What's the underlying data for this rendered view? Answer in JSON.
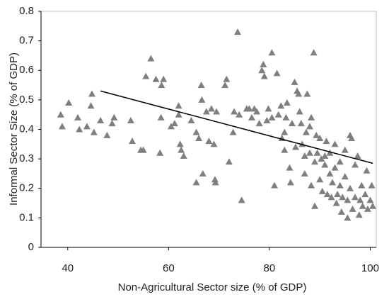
{
  "chart_data": {
    "type": "scatter",
    "x_label": "Non-Agricultural Sector size (% of GDP)",
    "y_label": "Informal Sector Size (% of GDP)",
    "xlim": [
      34.7,
      101.2
    ],
    "xticks": [
      40,
      60,
      80,
      100
    ],
    "ylim": [
      0,
      0.8
    ],
    "yticks": [
      0,
      0.1,
      0.2,
      0.3,
      0.4,
      0.5,
      0.6,
      0.7,
      0.8
    ],
    "x": [
      38.6,
      38.9,
      40.2,
      42,
      42.3,
      43.8,
      44.6,
      44.8,
      45.2,
      46.5,
      47.8,
      48.8,
      49.2,
      52.5,
      52.8,
      54.5,
      55,
      55.5,
      56.5,
      57.5,
      58.3,
      58.5,
      58.6,
      59,
      60.5,
      61.2,
      62,
      62,
      62.3,
      62.5,
      63,
      64.5,
      65.5,
      66,
      65.5,
      66.5,
      66.6,
      66.8,
      67.5,
      68,
      68.5,
      69.2,
      69.5,
      69.3,
      69,
      71.2,
      71.5,
      72,
      73.7,
      73,
      72.8,
      74,
      74.5,
      75.5,
      76,
      76.5,
      77,
      77.5,
      78,
      78.5,
      78.8,
      79,
      79.5,
      79.8,
      80.5,
      80.5,
      81,
      81.5,
      81.8,
      82.3,
      82.5,
      83,
      83,
      83.3,
      83.5,
      84,
      84.2,
      84.5,
      85,
      85.2,
      85.5,
      85.8,
      86,
      86.3,
      86.5,
      87,
      87,
      87.3,
      87.5,
      88,
      88,
      88.3,
      88.3,
      88.8,
      89,
      89,
      89.3,
      89.5,
      90,
      90,
      90.3,
      90.5,
      91,
      91,
      91.3,
      91.5,
      92,
      92,
      92.3,
      92.5,
      93,
      93,
      93.3,
      93.5,
      94,
      94,
      94.3,
      94.5,
      95,
      95,
      95.5,
      95.5,
      96,
      96,
      96.3,
      96.5,
      97,
      97,
      97.5,
      97.8,
      98,
      98.3,
      98.5,
      99,
      99.3,
      99.5,
      100,
      100.3,
      100.5
    ],
    "series": [
      {
        "color": "#7f7f7f",
        "values": [
          0.45,
          0.41,
          0.49,
          0.44,
          0.4,
          0.41,
          0.48,
          0.52,
          0.39,
          0.43,
          0.38,
          0.42,
          0.44,
          0.43,
          0.36,
          0.33,
          0.33,
          0.58,
          0.64,
          0.57,
          0.32,
          0.44,
          0.55,
          0.57,
          0.41,
          0.42,
          0.48,
          0.45,
          0.35,
          0.33,
          0.31,
          0.43,
          0.39,
          0.37,
          0.22,
          0.55,
          0.5,
          0.25,
          0.46,
          0.36,
          0.47,
          0.23,
          0.46,
          0.22,
          0.35,
          0.55,
          0.57,
          0.29,
          0.73,
          0.46,
          0.39,
          0.45,
          0.16,
          0.47,
          0.47,
          0.44,
          0.47,
          0.46,
          0.42,
          0.6,
          0.62,
          0.58,
          0.43,
          0.47,
          0.66,
          0.44,
          0.21,
          0.59,
          0.45,
          0.48,
          0.37,
          0.33,
          0.39,
          0.44,
          0.49,
          0.27,
          0.22,
          0.42,
          0.56,
          0.34,
          0.53,
          0.52,
          0.46,
          0.42,
          0.35,
          0.25,
          0.31,
          0.39,
          0.52,
          0.41,
          0.32,
          0.44,
          0.21,
          0.66,
          0.29,
          0.14,
          0.38,
          0.32,
          0.23,
          0.37,
          0.3,
          0.19,
          0.31,
          0.28,
          0.36,
          0.18,
          0.32,
          0.25,
          0.17,
          0.22,
          0.27,
          0.35,
          0.15,
          0.18,
          0.29,
          0.21,
          0.12,
          0.17,
          0.33,
          0.24,
          0.1,
          0.16,
          0.38,
          0.2,
          0.37,
          0.13,
          0.28,
          0.17,
          0.31,
          0.11,
          0.16,
          0.21,
          0.14,
          0.18,
          0.26,
          0.13,
          0.16,
          0.21,
          0.14
        ]
      }
    ],
    "trendline": {
      "color": "#000000",
      "x": [
        46.5,
        100.5
      ],
      "values": [
        0.53,
        0.285
      ]
    }
  }
}
